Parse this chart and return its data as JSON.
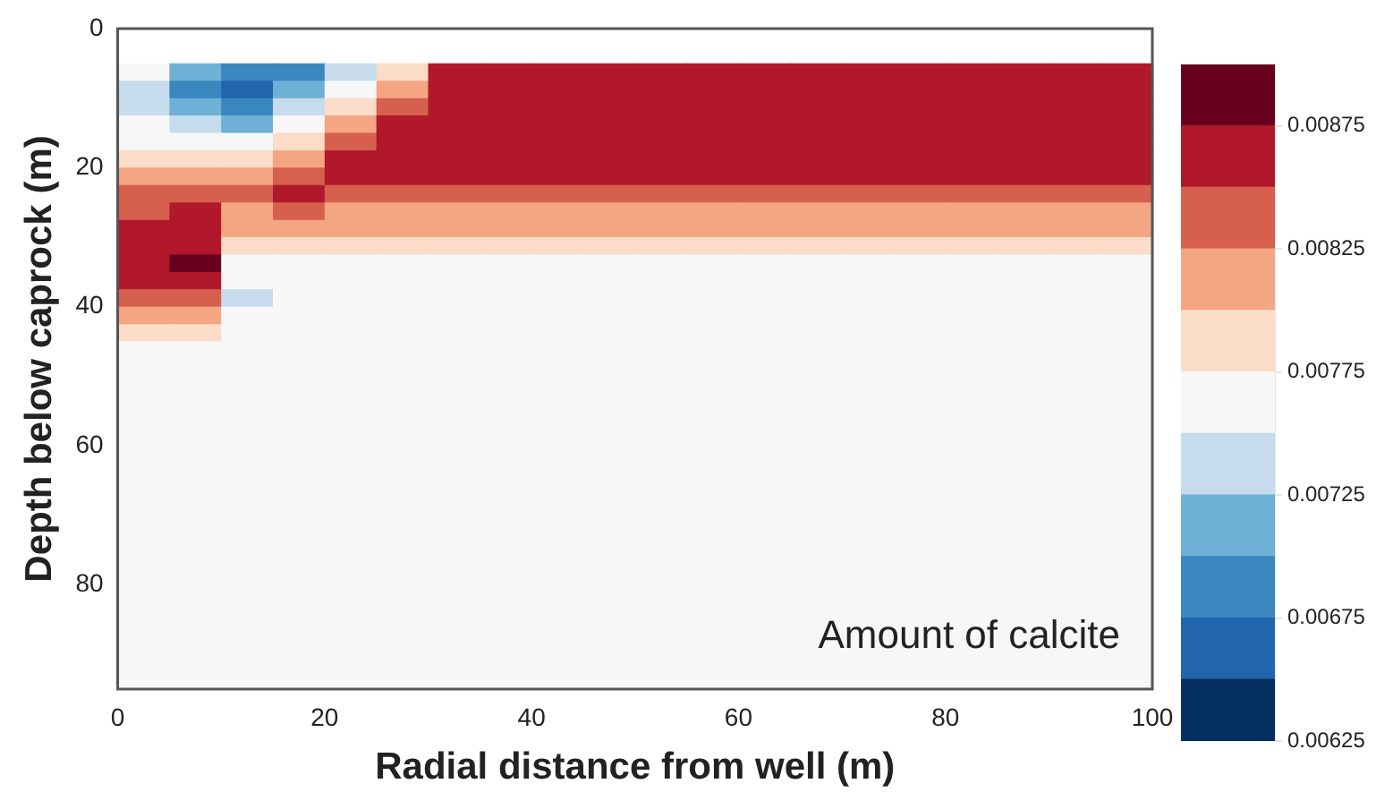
{
  "chart_data": {
    "type": "heatmap",
    "xlabel": "Radial distance from well (m)",
    "ylabel": "Depth below caprock (m)",
    "annotations": [
      "Amount of calcite"
    ],
    "xlim": [
      0,
      100
    ],
    "xticks": [
      0,
      20,
      40,
      60,
      80,
      100
    ],
    "ylim": [
      95,
      0
    ],
    "yticks": [
      0,
      20,
      40,
      60,
      80
    ],
    "clim": [
      0.00625,
      0.009
    ],
    "cticks": [
      0.00625,
      0.00675,
      0.00725,
      0.00775,
      0.00825,
      0.00875
    ],
    "colors": [
      "#053061",
      "#2166ac",
      "#3a87c0",
      "#6fb0d6",
      "#c6dcec",
      "#f7f7f7",
      "#fbdcc8",
      "#f4a582",
      "#d6604d",
      "#b2182b",
      "#67001f"
    ],
    "x": [
      2.5,
      7.5,
      12.5,
      17.5,
      22.5,
      27.5,
      32.5,
      37.5,
      42.5,
      47.5,
      52.5,
      57.5,
      62.5,
      67.5,
      72.5,
      77.5,
      82.5,
      87.5,
      92.5,
      97.5
    ],
    "y": [
      6.25,
      8.75,
      11.25,
      13.75,
      16.25,
      18.75,
      21.25,
      23.75,
      26.25,
      28.75,
      31.25,
      33.75,
      36.25,
      38.75,
      41.25,
      43.75,
      46.25,
      48.75,
      51.25,
      53.75,
      56.25,
      58.75,
      61.25,
      63.75,
      66.25,
      68.75,
      71.25,
      73.75,
      76.25,
      78.75,
      81.25,
      83.75,
      86.25,
      88.75,
      91.25,
      93.75
    ],
    "cells": [
      [
        0.00762,
        0.00712,
        0.00687,
        0.00687,
        0.00737,
        0.00787,
        0.00862,
        0.00862,
        0.00862,
        0.00862,
        0.00862,
        0.00862,
        0.00862,
        0.00862,
        0.00862,
        0.00862,
        0.00862,
        0.00862,
        0.00862,
        0.00862
      ],
      [
        0.00737,
        0.00687,
        0.00662,
        0.00712,
        0.00762,
        0.00812,
        0.00862,
        0.00862,
        0.00862,
        0.00862,
        0.00862,
        0.00862,
        0.00862,
        0.00862,
        0.00862,
        0.00862,
        0.00862,
        0.00862,
        0.00862,
        0.00862
      ],
      [
        0.00737,
        0.00712,
        0.00687,
        0.00737,
        0.00787,
        0.00837,
        0.00862,
        0.00862,
        0.00862,
        0.00862,
        0.00862,
        0.00862,
        0.00862,
        0.00862,
        0.00862,
        0.00862,
        0.00862,
        0.00862,
        0.00862,
        0.00862
      ],
      [
        0.00762,
        0.00737,
        0.00712,
        0.00762,
        0.00812,
        0.00862,
        0.00862,
        0.00862,
        0.00862,
        0.00862,
        0.00862,
        0.00862,
        0.00862,
        0.00862,
        0.00862,
        0.00862,
        0.00862,
        0.00862,
        0.00862,
        0.00862
      ],
      [
        0.00762,
        0.00762,
        0.00762,
        0.00787,
        0.00837,
        0.00862,
        0.00862,
        0.00862,
        0.00862,
        0.00862,
        0.00862,
        0.00862,
        0.00862,
        0.00862,
        0.00862,
        0.00862,
        0.00862,
        0.00862,
        0.00862,
        0.00862
      ],
      [
        0.00787,
        0.00787,
        0.00787,
        0.00812,
        0.00862,
        0.00862,
        0.00862,
        0.00862,
        0.00862,
        0.00862,
        0.00862,
        0.00862,
        0.00862,
        0.00862,
        0.00862,
        0.00862,
        0.00862,
        0.00862,
        0.00862,
        0.00862
      ],
      [
        0.00812,
        0.00812,
        0.00812,
        0.00837,
        0.00862,
        0.00862,
        0.00862,
        0.00862,
        0.00862,
        0.00862,
        0.00862,
        0.00862,
        0.00862,
        0.00862,
        0.00862,
        0.00862,
        0.00862,
        0.00862,
        0.00862,
        0.00862
      ],
      [
        0.00837,
        0.00837,
        0.00837,
        0.00862,
        0.00837,
        0.00837,
        0.00837,
        0.00837,
        0.00837,
        0.00837,
        0.00837,
        0.00837,
        0.00837,
        0.00837,
        0.00837,
        0.00837,
        0.00837,
        0.00837,
        0.00837,
        0.00837
      ],
      [
        0.00837,
        0.00862,
        0.00812,
        0.00837,
        0.00812,
        0.00812,
        0.00812,
        0.00812,
        0.00812,
        0.00812,
        0.00812,
        0.00812,
        0.00812,
        0.00812,
        0.00812,
        0.00812,
        0.00812,
        0.00812,
        0.00812,
        0.00812
      ],
      [
        0.00862,
        0.00862,
        0.00812,
        0.00812,
        0.00812,
        0.00812,
        0.00812,
        0.00812,
        0.00812,
        0.00812,
        0.00812,
        0.00812,
        0.00812,
        0.00812,
        0.00812,
        0.00812,
        0.00812,
        0.00812,
        0.00812,
        0.00812
      ],
      [
        0.00862,
        0.00862,
        0.00787,
        0.00787,
        0.00787,
        0.00787,
        0.00787,
        0.00787,
        0.00787,
        0.00787,
        0.00787,
        0.00787,
        0.00787,
        0.00787,
        0.00787,
        0.00787,
        0.00787,
        0.00787,
        0.00787,
        0.00787
      ],
      [
        0.00862,
        0.00887,
        0.00762,
        0.00762,
        0.00762,
        0.00762,
        0.00762,
        0.00762,
        0.00762,
        0.00762,
        0.00762,
        0.00762,
        0.00762,
        0.00762,
        0.00762,
        0.00762,
        0.00762,
        0.00762,
        0.00762,
        0.00762
      ],
      [
        0.00862,
        0.00862,
        0.00762,
        0.00762,
        0.00762,
        0.00762,
        0.00762,
        0.00762,
        0.00762,
        0.00762,
        0.00762,
        0.00762,
        0.00762,
        0.00762,
        0.00762,
        0.00762,
        0.00762,
        0.00762,
        0.00762,
        0.00762
      ],
      [
        0.00837,
        0.00837,
        0.00737,
        0.00762,
        0.00762,
        0.00762,
        0.00762,
        0.00762,
        0.00762,
        0.00762,
        0.00762,
        0.00762,
        0.00762,
        0.00762,
        0.00762,
        0.00762,
        0.00762,
        0.00762,
        0.00762,
        0.00762
      ],
      [
        0.00812,
        0.00812,
        0.00762,
        0.00762,
        0.00762,
        0.00762,
        0.00762,
        0.00762,
        0.00762,
        0.00762,
        0.00762,
        0.00762,
        0.00762,
        0.00762,
        0.00762,
        0.00762,
        0.00762,
        0.00762,
        0.00762,
        0.00762
      ],
      [
        0.00787,
        0.00787,
        0.00762,
        0.00762,
        0.00762,
        0.00762,
        0.00762,
        0.00762,
        0.00762,
        0.00762,
        0.00762,
        0.00762,
        0.00762,
        0.00762,
        0.00762,
        0.00762,
        0.00762,
        0.00762,
        0.00762,
        0.00762
      ],
      [
        0.00762,
        0.00762,
        0.00762,
        0.00762,
        0.00762,
        0.00762,
        0.00762,
        0.00762,
        0.00762,
        0.00762,
        0.00762,
        0.00762,
        0.00762,
        0.00762,
        0.00762,
        0.00762,
        0.00762,
        0.00762,
        0.00762,
        0.00762
      ],
      [
        0.00762,
        0.00762,
        0.00762,
        0.00762,
        0.00762,
        0.00762,
        0.00762,
        0.00762,
        0.00762,
        0.00762,
        0.00762,
        0.00762,
        0.00762,
        0.00762,
        0.00762,
        0.00762,
        0.00762,
        0.00762,
        0.00762,
        0.00762
      ],
      [
        0.00762,
        0.00762,
        0.00762,
        0.00762,
        0.00762,
        0.00762,
        0.00762,
        0.00762,
        0.00762,
        0.00762,
        0.00762,
        0.00762,
        0.00762,
        0.00762,
        0.00762,
        0.00762,
        0.00762,
        0.00762,
        0.00762,
        0.00762
      ],
      [
        0.00762,
        0.00762,
        0.00762,
        0.00762,
        0.00762,
        0.00762,
        0.00762,
        0.00762,
        0.00762,
        0.00762,
        0.00762,
        0.00762,
        0.00762,
        0.00762,
        0.00762,
        0.00762,
        0.00762,
        0.00762,
        0.00762,
        0.00762
      ],
      [
        0.00762,
        0.00762,
        0.00762,
        0.00762,
        0.00762,
        0.00762,
        0.00762,
        0.00762,
        0.00762,
        0.00762,
        0.00762,
        0.00762,
        0.00762,
        0.00762,
        0.00762,
        0.00762,
        0.00762,
        0.00762,
        0.00762,
        0.00762
      ],
      [
        0.00762,
        0.00762,
        0.00762,
        0.00762,
        0.00762,
        0.00762,
        0.00762,
        0.00762,
        0.00762,
        0.00762,
        0.00762,
        0.00762,
        0.00762,
        0.00762,
        0.00762,
        0.00762,
        0.00762,
        0.00762,
        0.00762,
        0.00762
      ],
      [
        0.00762,
        0.00762,
        0.00762,
        0.00762,
        0.00762,
        0.00762,
        0.00762,
        0.00762,
        0.00762,
        0.00762,
        0.00762,
        0.00762,
        0.00762,
        0.00762,
        0.00762,
        0.00762,
        0.00762,
        0.00762,
        0.00762,
        0.00762
      ],
      [
        0.00762,
        0.00762,
        0.00762,
        0.00762,
        0.00762,
        0.00762,
        0.00762,
        0.00762,
        0.00762,
        0.00762,
        0.00762,
        0.00762,
        0.00762,
        0.00762,
        0.00762,
        0.00762,
        0.00762,
        0.00762,
        0.00762,
        0.00762
      ],
      [
        0.00762,
        0.00762,
        0.00762,
        0.00762,
        0.00762,
        0.00762,
        0.00762,
        0.00762,
        0.00762,
        0.00762,
        0.00762,
        0.00762,
        0.00762,
        0.00762,
        0.00762,
        0.00762,
        0.00762,
        0.00762,
        0.00762,
        0.00762
      ],
      [
        0.00762,
        0.00762,
        0.00762,
        0.00762,
        0.00762,
        0.00762,
        0.00762,
        0.00762,
        0.00762,
        0.00762,
        0.00762,
        0.00762,
        0.00762,
        0.00762,
        0.00762,
        0.00762,
        0.00762,
        0.00762,
        0.00762,
        0.00762
      ],
      [
        0.00762,
        0.00762,
        0.00762,
        0.00762,
        0.00762,
        0.00762,
        0.00762,
        0.00762,
        0.00762,
        0.00762,
        0.00762,
        0.00762,
        0.00762,
        0.00762,
        0.00762,
        0.00762,
        0.00762,
        0.00762,
        0.00762,
        0.00762
      ],
      [
        0.00762,
        0.00762,
        0.00762,
        0.00762,
        0.00762,
        0.00762,
        0.00762,
        0.00762,
        0.00762,
        0.00762,
        0.00762,
        0.00762,
        0.00762,
        0.00762,
        0.00762,
        0.00762,
        0.00762,
        0.00762,
        0.00762,
        0.00762
      ],
      [
        0.00762,
        0.00762,
        0.00762,
        0.00762,
        0.00762,
        0.00762,
        0.00762,
        0.00762,
        0.00762,
        0.00762,
        0.00762,
        0.00762,
        0.00762,
        0.00762,
        0.00762,
        0.00762,
        0.00762,
        0.00762,
        0.00762,
        0.00762
      ],
      [
        0.00762,
        0.00762,
        0.00762,
        0.00762,
        0.00762,
        0.00762,
        0.00762,
        0.00762,
        0.00762,
        0.00762,
        0.00762,
        0.00762,
        0.00762,
        0.00762,
        0.00762,
        0.00762,
        0.00762,
        0.00762,
        0.00762,
        0.00762
      ],
      [
        0.00762,
        0.00762,
        0.00762,
        0.00762,
        0.00762,
        0.00762,
        0.00762,
        0.00762,
        0.00762,
        0.00762,
        0.00762,
        0.00762,
        0.00762,
        0.00762,
        0.00762,
        0.00762,
        0.00762,
        0.00762,
        0.00762,
        0.00762
      ],
      [
        0.00762,
        0.00762,
        0.00762,
        0.00762,
        0.00762,
        0.00762,
        0.00762,
        0.00762,
        0.00762,
        0.00762,
        0.00762,
        0.00762,
        0.00762,
        0.00762,
        0.00762,
        0.00762,
        0.00762,
        0.00762,
        0.00762,
        0.00762
      ],
      [
        0.00762,
        0.00762,
        0.00762,
        0.00762,
        0.00762,
        0.00762,
        0.00762,
        0.00762,
        0.00762,
        0.00762,
        0.00762,
        0.00762,
        0.00762,
        0.00762,
        0.00762,
        0.00762,
        0.00762,
        0.00762,
        0.00762,
        0.00762
      ],
      [
        0.00762,
        0.00762,
        0.00762,
        0.00762,
        0.00762,
        0.00762,
        0.00762,
        0.00762,
        0.00762,
        0.00762,
        0.00762,
        0.00762,
        0.00762,
        0.00762,
        0.00762,
        0.00762,
        0.00762,
        0.00762,
        0.00762,
        0.00762
      ],
      [
        0.00762,
        0.00762,
        0.00762,
        0.00762,
        0.00762,
        0.00762,
        0.00762,
        0.00762,
        0.00762,
        0.00762,
        0.00762,
        0.00762,
        0.00762,
        0.00762,
        0.00762,
        0.00762,
        0.00762,
        0.00762,
        0.00762,
        0.00762
      ],
      [
        0.00762,
        0.00762,
        0.00762,
        0.00762,
        0.00762,
        0.00762,
        0.00762,
        0.00762,
        0.00762,
        0.00762,
        0.00762,
        0.00762,
        0.00762,
        0.00762,
        0.00762,
        0.00762,
        0.00762,
        0.00762,
        0.00762,
        0.00762
      ]
    ]
  }
}
